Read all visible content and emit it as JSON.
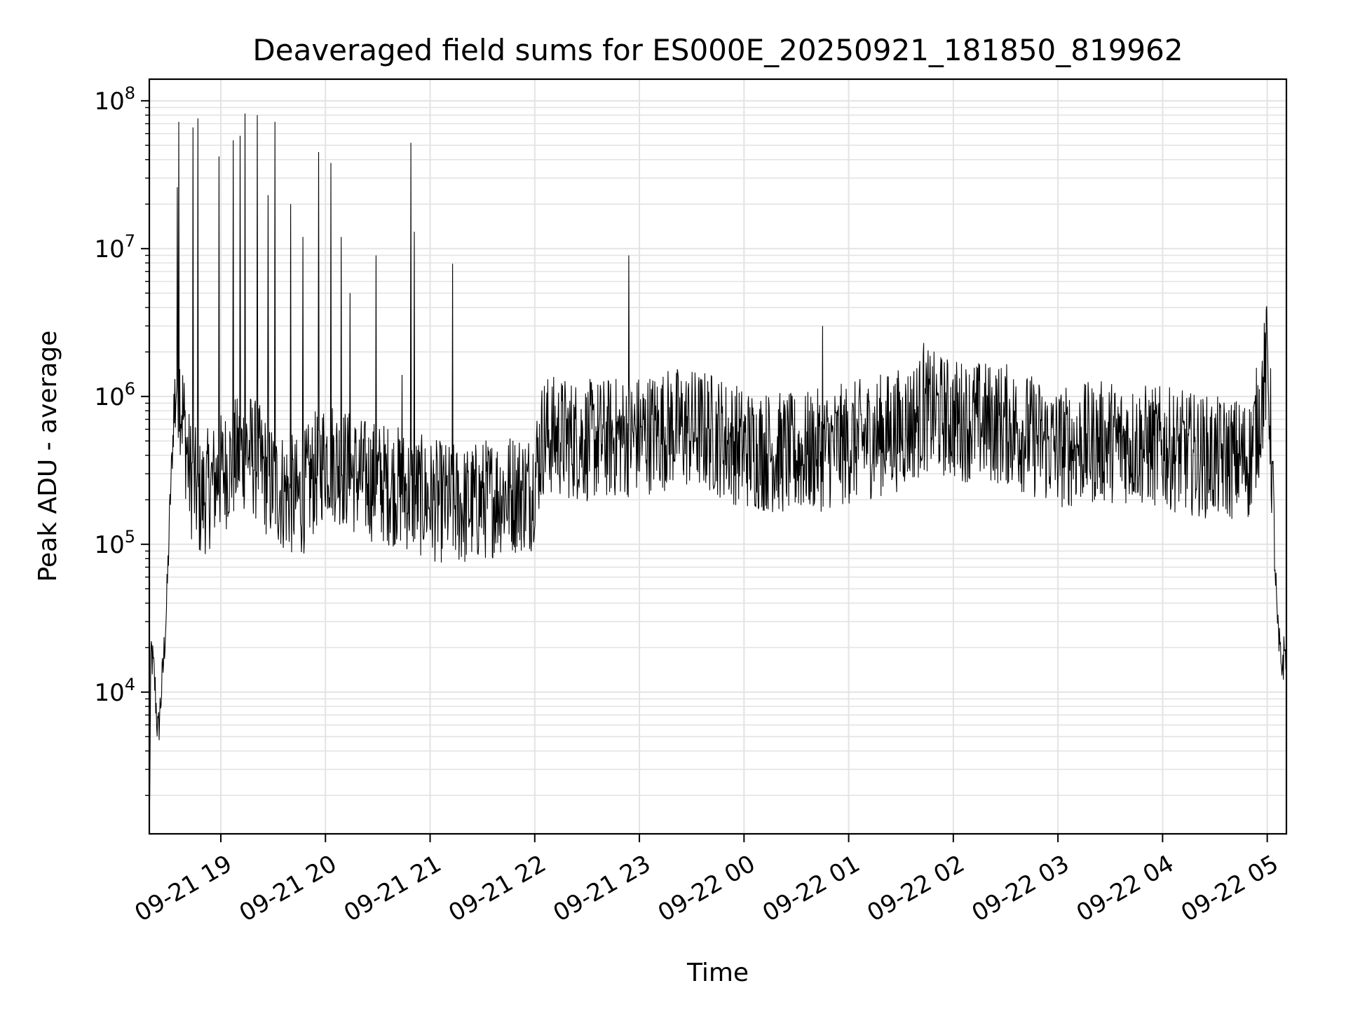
{
  "chart_data": {
    "type": "line",
    "title": "Deaveraged field sums for ES000E_20250921_181850_819962",
    "xlabel": "Time",
    "ylabel": "Peak ADU - average",
    "yscale": "log",
    "ylim": [
      1100,
      140000000
    ],
    "xlim": [
      "2025-09-21 18:19",
      "2025-09-22 05:11"
    ],
    "grid": true,
    "x_ticks": [
      {
        "t": "2025-09-21 19:00",
        "label": "09-21 19"
      },
      {
        "t": "2025-09-21 20:00",
        "label": "09-21 20"
      },
      {
        "t": "2025-09-21 21:00",
        "label": "09-21 21"
      },
      {
        "t": "2025-09-21 22:00",
        "label": "09-21 22"
      },
      {
        "t": "2025-09-21 23:00",
        "label": "09-21 23"
      },
      {
        "t": "2025-09-22 00:00",
        "label": "09-22 00"
      },
      {
        "t": "2025-09-22 01:00",
        "label": "09-22 01"
      },
      {
        "t": "2025-09-22 02:00",
        "label": "09-22 02"
      },
      {
        "t": "2025-09-22 03:00",
        "label": "09-22 03"
      },
      {
        "t": "2025-09-22 04:00",
        "label": "09-22 04"
      },
      {
        "t": "2025-09-22 05:00",
        "label": "09-22 05"
      }
    ],
    "y_ticks": [
      {
        "value": 10000,
        "base": "10",
        "exp": "4"
      },
      {
        "value": 100000,
        "base": "10",
        "exp": "5"
      },
      {
        "value": 1000000,
        "base": "10",
        "exp": "6"
      },
      {
        "value": 10000000,
        "base": "10",
        "exp": "7"
      },
      {
        "value": 100000000,
        "base": "10",
        "exp": "8"
      }
    ],
    "series": [
      {
        "color": "#000000",
        "points": [
          [
            "2025-09-21 18:19",
            1100
          ],
          [
            "2025-09-21 18:20",
            20000
          ],
          [
            "2025-09-21 18:22",
            12000
          ],
          [
            "2025-09-21 18:24",
            5000
          ],
          [
            "2025-09-21 18:27",
            15000
          ],
          [
            "2025-09-21 18:29",
            40000
          ],
          [
            "2025-09-21 18:31",
            200000
          ],
          [
            "2025-09-21 18:33",
            700000
          ],
          [
            "2025-09-21 18:35",
            1500000
          ],
          [
            "2025-09-21 18:38",
            800000
          ],
          [
            "2025-09-21 18:42",
            300000
          ],
          [
            "2025-09-21 18:48",
            200000
          ],
          [
            "2025-09-21 19:00",
            300000
          ],
          [
            "2025-09-21 19:15",
            450000
          ],
          [
            "2025-09-21 19:30",
            250000
          ],
          [
            "2025-09-21 19:45",
            200000
          ],
          [
            "2025-09-21 20:00",
            400000
          ],
          [
            "2025-09-21 20:20",
            280000
          ],
          [
            "2025-09-21 20:40",
            250000
          ],
          [
            "2025-09-21 21:00",
            200000
          ],
          [
            "2025-09-21 21:20",
            180000
          ],
          [
            "2025-09-21 21:40",
            220000
          ],
          [
            "2025-09-21 21:58",
            230000
          ],
          [
            "2025-09-21 22:05",
            550000
          ],
          [
            "2025-09-21 22:30",
            500000
          ],
          [
            "2025-09-21 23:00",
            550000
          ],
          [
            "2025-09-21 23:20",
            620000
          ],
          [
            "2025-09-21 23:40",
            580000
          ],
          [
            "2025-09-22 00:00",
            450000
          ],
          [
            "2025-09-22 00:30",
            400000
          ],
          [
            "2025-09-22 01:00",
            480000
          ],
          [
            "2025-09-22 01:30",
            600000
          ],
          [
            "2025-09-22 01:45",
            800000
          ],
          [
            "2025-09-22 02:00",
            700000
          ],
          [
            "2025-09-22 02:30",
            650000
          ],
          [
            "2025-09-22 03:00",
            450000
          ],
          [
            "2025-09-22 03:30",
            500000
          ],
          [
            "2025-09-22 04:00",
            450000
          ],
          [
            "2025-09-22 04:30",
            380000
          ],
          [
            "2025-09-22 04:50",
            380000
          ],
          [
            "2025-09-22 04:56",
            800000
          ],
          [
            "2025-09-22 05:00",
            1800000
          ],
          [
            "2025-09-22 05:02",
            600000
          ],
          [
            "2025-09-22 05:04",
            100000
          ],
          [
            "2025-09-22 05:06",
            25000
          ],
          [
            "2025-09-22 05:08",
            15000
          ],
          [
            "2025-09-22 05:11",
            20000
          ]
        ],
        "noise_dex": 0.42,
        "spikes": [
          [
            "2025-09-21 18:35",
            26000000
          ],
          [
            "2025-09-21 18:36",
            72000000
          ],
          [
            "2025-09-21 18:44",
            66000000
          ],
          [
            "2025-09-21 18:47",
            76000000
          ],
          [
            "2025-09-21 18:59",
            42000000
          ],
          [
            "2025-09-21 19:07",
            54000000
          ],
          [
            "2025-09-21 19:11",
            58000000
          ],
          [
            "2025-09-21 19:14",
            82000000
          ],
          [
            "2025-09-21 19:21",
            80000000
          ],
          [
            "2025-09-21 19:27",
            23000000
          ],
          [
            "2025-09-21 19:31",
            72000000
          ],
          [
            "2025-09-21 19:40",
            20000000
          ],
          [
            "2025-09-21 19:47",
            12000000
          ],
          [
            "2025-09-21 19:56",
            45000000
          ],
          [
            "2025-09-21 20:03",
            38000000
          ],
          [
            "2025-09-21 20:09",
            12000000
          ],
          [
            "2025-09-21 20:14",
            5000000
          ],
          [
            "2025-09-21 20:29",
            9000000
          ],
          [
            "2025-09-21 20:44",
            1400000
          ],
          [
            "2025-09-21 20:49",
            52000000
          ],
          [
            "2025-09-21 20:51",
            13000000
          ],
          [
            "2025-09-21 21:13",
            7900000
          ],
          [
            "2025-09-21 22:54",
            9000000
          ],
          [
            "2025-09-22 00:45",
            3000000
          ],
          [
            "2025-09-22 01:43",
            2300000
          ]
        ]
      }
    ]
  }
}
